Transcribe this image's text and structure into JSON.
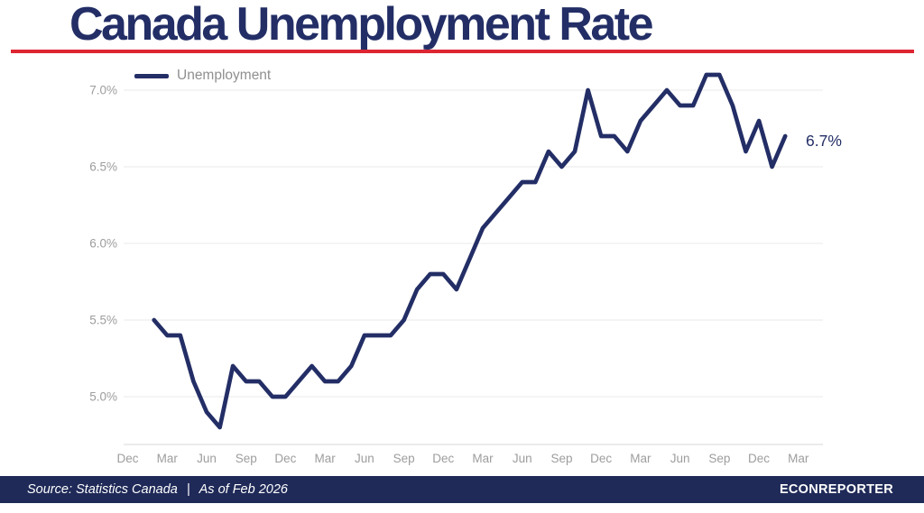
{
  "footer": {
    "source_label": "Source: Statistics Canada",
    "separator": "|",
    "as_of": "As of Feb 2026",
    "brand": "ECONREPORTER"
  },
  "colors": {
    "navy": "#232e66",
    "red": "#de2532",
    "footer_bg": "#1f2a58",
    "grid": "#f0f0f0",
    "axis": "#e6e6e6",
    "tick_text": "#9d9d9d",
    "legend_text": "#8f8f8f"
  },
  "chart_data": {
    "type": "line",
    "title": "Canada Unemployment Rate",
    "legend_position": "top-left",
    "grid": "horizontal-only",
    "ylabel": "",
    "xlabel": "",
    "ylim": [
      4.65,
      7.25
    ],
    "y_ticks": [
      {
        "value": 5.0,
        "label": "5.0%"
      },
      {
        "value": 5.5,
        "label": "5.5%"
      },
      {
        "value": 6.0,
        "label": "6.0%"
      },
      {
        "value": 6.5,
        "label": "6.5%"
      },
      {
        "value": 7.0,
        "label": "7.0%"
      }
    ],
    "x_ticks": {
      "labels": [
        "Dec",
        "Mar",
        "Jun",
        "Sep",
        "Dec",
        "Mar",
        "Jun",
        "Sep",
        "Dec",
        "Mar",
        "Jun",
        "Sep",
        "Dec",
        "Mar",
        "Jun",
        "Sep",
        "Dec",
        "Mar"
      ],
      "first_month_offset": -2,
      "step_months": 3
    },
    "annotation": {
      "text": "6.7%",
      "attach": "last-point"
    },
    "series": [
      {
        "name": "Unemployment",
        "color": "#232e66",
        "x": [
          "Feb 2022",
          "Mar 2022",
          "Apr 2022",
          "May 2022",
          "Jun 2022",
          "Jul 2022",
          "Aug 2022",
          "Sep 2022",
          "Oct 2022",
          "Nov 2022",
          "Dec 2022",
          "Jan 2023",
          "Feb 2023",
          "Mar 2023",
          "Apr 2023",
          "May 2023",
          "Jun 2023",
          "Jul 2023",
          "Aug 2023",
          "Sep 2023",
          "Oct 2023",
          "Nov 2023",
          "Dec 2023",
          "Jan 2024",
          "Feb 2024",
          "Mar 2024",
          "Apr 2024",
          "May 2024",
          "Jun 2024",
          "Jul 2024",
          "Aug 2024",
          "Sep 2024",
          "Oct 2024",
          "Nov 2024",
          "Dec 2024",
          "Jan 2025",
          "Feb 2025",
          "Mar 2025",
          "Apr 2025",
          "May 2025",
          "Jun 2025",
          "Jul 2025",
          "Aug 2025",
          "Sep 2025",
          "Oct 2025",
          "Nov 2025",
          "Dec 2025",
          "Jan 2026",
          "Feb 2026"
        ],
        "values": [
          5.5,
          5.4,
          5.4,
          5.1,
          4.9,
          4.8,
          5.2,
          5.1,
          5.1,
          5.0,
          5.0,
          5.1,
          5.2,
          5.1,
          5.1,
          5.2,
          5.4,
          5.4,
          5.4,
          5.5,
          5.7,
          5.8,
          5.8,
          5.7,
          5.9,
          6.1,
          6.2,
          6.3,
          6.4,
          6.4,
          6.6,
          6.5,
          6.6,
          7.0,
          6.7,
          6.7,
          6.6,
          6.8,
          6.9,
          7.0,
          6.9,
          6.9,
          7.1,
          7.1,
          6.9,
          6.6,
          6.8,
          6.5,
          6.7
        ]
      }
    ]
  }
}
